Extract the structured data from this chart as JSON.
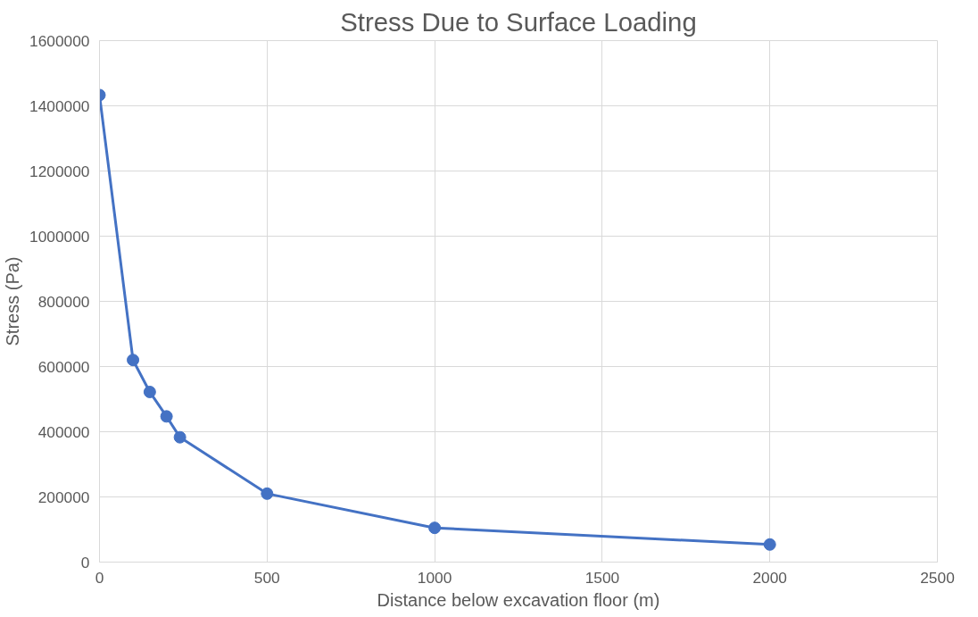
{
  "chart_data": {
    "type": "line",
    "title": "Stress Due to Surface Loading",
    "xlabel": "Distance below excavation floor (m)",
    "ylabel": "Stress (Pa)",
    "x": [
      0,
      100,
      150,
      200,
      240,
      500,
      1000,
      2000
    ],
    "series": [
      {
        "color": "#4472c4",
        "values": [
          1433000,
          620000,
          522000,
          447000,
          383000,
          210000,
          105000,
          54000
        ]
      }
    ],
    "xlim": [
      0,
      2500
    ],
    "xticks": [
      0,
      500,
      1000,
      1500,
      2000,
      2500
    ],
    "ylim": [
      0,
      1600000
    ],
    "yticks": [
      0,
      200000,
      400000,
      600000,
      800000,
      1000000,
      1200000,
      1400000,
      1600000
    ],
    "grid": true,
    "marker": "circle",
    "line_style": "solid"
  }
}
